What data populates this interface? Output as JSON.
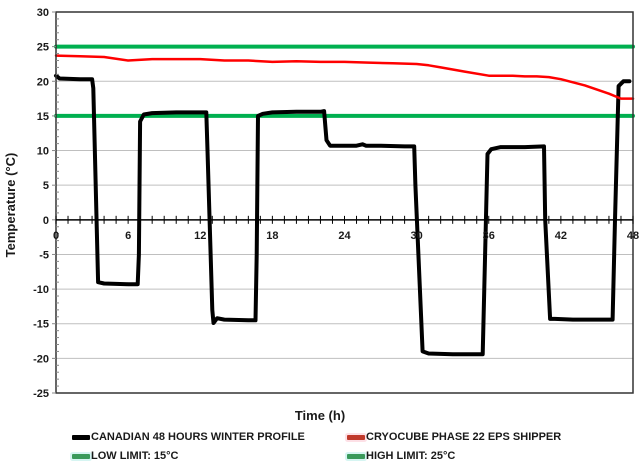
{
  "chart_data": {
    "type": "line",
    "title": "",
    "xlabel": "Time (h)",
    "ylabel": "Temperature (°C)",
    "xlim": [
      0,
      48
    ],
    "ylim": [
      -25,
      30
    ],
    "x_ticks": [
      0,
      6,
      12,
      18,
      24,
      30,
      36,
      42,
      48
    ],
    "x_minor_step": 1,
    "y_ticks": [
      30,
      25,
      20,
      15,
      10,
      5,
      0,
      -5,
      -10,
      -15,
      -20,
      -25
    ],
    "grid": "horizontal",
    "legend_position": "bottom",
    "series": [
      {
        "name": "CANADIAN 48 HOURS WINTER PROFILE",
        "color": "#000000",
        "width": 4,
        "points": [
          [
            0,
            20.8
          ],
          [
            0.3,
            20.4
          ],
          [
            2,
            20.3
          ],
          [
            3,
            20.3
          ],
          [
            3.1,
            19
          ],
          [
            3.5,
            -9.0
          ],
          [
            4,
            -9.2
          ],
          [
            6,
            -9.3
          ],
          [
            6.8,
            -9.3
          ],
          [
            6.9,
            -5
          ],
          [
            7.0,
            14.2
          ],
          [
            7.3,
            15.2
          ],
          [
            8,
            15.4
          ],
          [
            10,
            15.5
          ],
          [
            12.5,
            15.5
          ],
          [
            12.6,
            10
          ],
          [
            13.0,
            -13
          ],
          [
            13.1,
            -14.9
          ],
          [
            13.4,
            -14.2
          ],
          [
            14,
            -14.4
          ],
          [
            16,
            -14.5
          ],
          [
            16.6,
            -14.5
          ],
          [
            16.7,
            -5
          ],
          [
            16.8,
            15.0
          ],
          [
            17.2,
            15.3
          ],
          [
            18,
            15.5
          ],
          [
            20,
            15.6
          ],
          [
            22,
            15.6
          ],
          [
            22.3,
            15.7
          ],
          [
            22.5,
            11.5
          ],
          [
            22.8,
            10.7
          ],
          [
            24,
            10.7
          ],
          [
            25,
            10.7
          ],
          [
            25.5,
            10.9
          ],
          [
            25.8,
            10.7
          ],
          [
            27,
            10.7
          ],
          [
            29,
            10.6
          ],
          [
            29.8,
            10.6
          ],
          [
            29.9,
            5
          ],
          [
            30.5,
            -19.0
          ],
          [
            31,
            -19.3
          ],
          [
            33,
            -19.4
          ],
          [
            35.5,
            -19.4
          ],
          [
            35.7,
            -5
          ],
          [
            35.9,
            9.5
          ],
          [
            36.2,
            10.2
          ],
          [
            37,
            10.5
          ],
          [
            39,
            10.5
          ],
          [
            40.6,
            10.6
          ],
          [
            40.7,
            0
          ],
          [
            41.1,
            -14.3
          ],
          [
            41.5,
            -14.3
          ],
          [
            43,
            -14.4
          ],
          [
            46.3,
            -14.4
          ],
          [
            46.5,
            0
          ],
          [
            46.8,
            19.3
          ],
          [
            47.2,
            20.0
          ],
          [
            47.7,
            20.0
          ]
        ]
      },
      {
        "name": "CRYOCUBE PHASE 22 EPS SHIPPER",
        "color": "#ff0000",
        "width": 2.5,
        "points": [
          [
            0,
            23.7
          ],
          [
            2,
            23.6
          ],
          [
            4,
            23.5
          ],
          [
            6,
            23.0
          ],
          [
            8,
            23.2
          ],
          [
            10,
            23.2
          ],
          [
            12,
            23.2
          ],
          [
            14,
            23.0
          ],
          [
            16,
            23.0
          ],
          [
            18,
            22.8
          ],
          [
            20,
            22.9
          ],
          [
            22,
            22.8
          ],
          [
            24,
            22.8
          ],
          [
            26,
            22.7
          ],
          [
            28,
            22.6
          ],
          [
            30,
            22.5
          ],
          [
            31,
            22.3
          ],
          [
            32,
            22.0
          ],
          [
            34,
            21.4
          ],
          [
            36,
            20.8
          ],
          [
            38,
            20.8
          ],
          [
            39,
            20.7
          ],
          [
            40,
            20.7
          ],
          [
            41,
            20.6
          ],
          [
            42,
            20.3
          ],
          [
            44,
            19.4
          ],
          [
            46,
            18.2
          ],
          [
            47,
            17.5
          ],
          [
            48,
            17.5
          ]
        ]
      },
      {
        "name": "LOW LIMIT: 15°C",
        "color": "#00b050",
        "width": 4,
        "points": [
          [
            0,
            15
          ],
          [
            48,
            15
          ]
        ]
      },
      {
        "name": "HIGH LIMIT: 25°C",
        "color": "#00b050",
        "width": 4,
        "points": [
          [
            0,
            25
          ],
          [
            48,
            25
          ]
        ]
      }
    ]
  },
  "labels": {
    "xlabel": "Time (h)",
    "ylabel": "Temperature (°C)"
  },
  "legend": [
    {
      "label": "CANADIAN 48 HOURS WINTER PROFILE",
      "color": "#000000",
      "bg": "#ffffff"
    },
    {
      "label": "CRYOCUBE PHASE 22 EPS SHIPPER",
      "color": "#c0392b",
      "bg": "#fde0e6"
    },
    {
      "label": "LOW LIMIT: 15°C",
      "color": "#3a9a5b",
      "bg": "#d6f5f2"
    },
    {
      "label": "HIGH LIMIT: 25°C",
      "color": "#3a9a5b",
      "bg": "#d6f5f2"
    }
  ],
  "colors": {
    "axis": "#333333",
    "grid": "#bfbfbf",
    "text": "#1a1a1a"
  }
}
